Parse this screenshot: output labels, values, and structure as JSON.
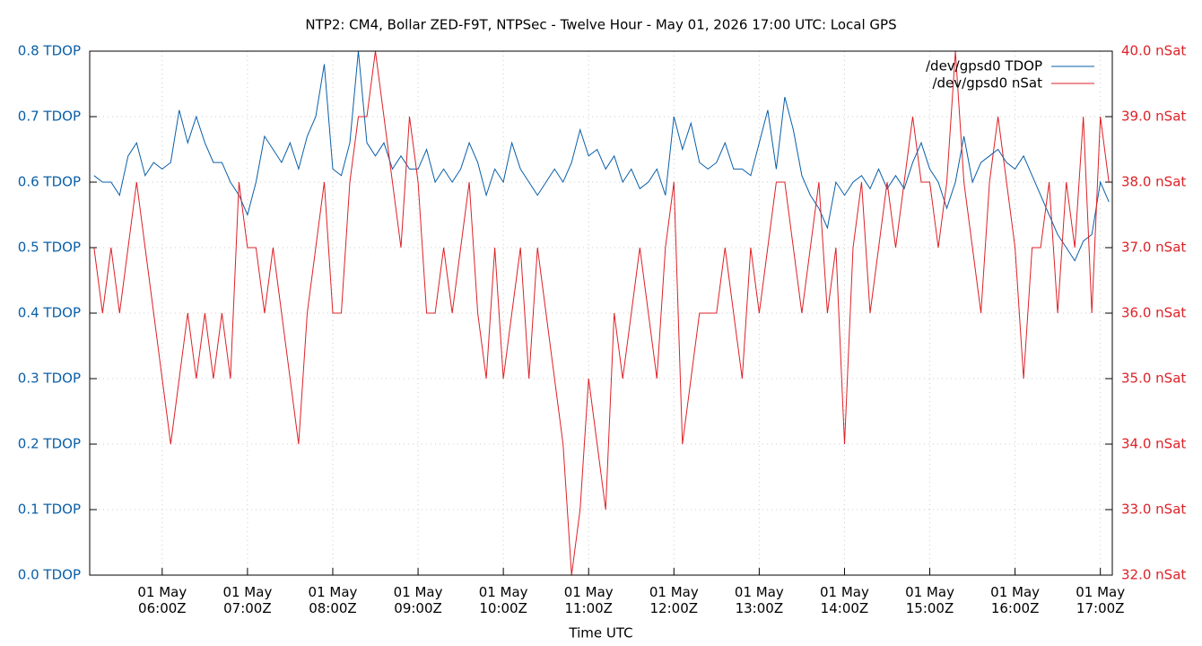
{
  "chart_data": {
    "type": "line",
    "title": "NTP2: CM4, Bollar ZED-F9T, NTPSec - Twelve Hour - May 01, 2026 17:00 UTC: Local GPS",
    "xlabel": "Time UTC",
    "x": [
      5.2,
      5.3,
      5.4,
      5.5,
      5.6,
      5.7,
      5.8,
      5.9,
      6.0,
      6.1,
      6.2,
      6.3,
      6.4,
      6.5,
      6.6,
      6.7,
      6.8,
      6.9,
      7.0,
      7.1,
      7.2,
      7.3,
      7.4,
      7.5,
      7.6,
      7.7,
      7.8,
      7.9,
      8.0,
      8.1,
      8.2,
      8.3,
      8.4,
      8.5,
      8.6,
      8.7,
      8.8,
      8.9,
      9.0,
      9.1,
      9.2,
      9.3,
      9.4,
      9.5,
      9.6,
      9.7,
      9.8,
      9.9,
      10.0,
      10.1,
      10.2,
      10.3,
      10.4,
      10.5,
      10.6,
      10.7,
      10.8,
      10.9,
      11.0,
      11.1,
      11.2,
      11.3,
      11.4,
      11.5,
      11.6,
      11.7,
      11.8,
      11.9,
      12.0,
      12.1,
      12.2,
      12.3,
      12.4,
      12.5,
      12.6,
      12.7,
      12.8,
      12.9,
      13.0,
      13.1,
      13.2,
      13.3,
      13.4,
      13.5,
      13.6,
      13.7,
      13.8,
      13.9,
      14.0,
      14.1,
      14.2,
      14.3,
      14.4,
      14.5,
      14.6,
      14.7,
      14.8,
      14.9,
      15.0,
      15.1,
      15.2,
      15.3,
      15.4,
      15.5,
      15.6,
      15.7,
      15.8,
      15.9,
      16.0,
      16.1,
      16.2,
      16.3,
      16.4,
      16.5,
      16.6,
      16.7,
      16.8,
      16.9,
      17.0,
      17.1
    ],
    "series": [
      {
        "name": "/dev/gpsd0 TDOP",
        "color": "#0a5fa8",
        "axis": "y",
        "values": [
          0.61,
          0.6,
          0.6,
          0.58,
          0.64,
          0.66,
          0.61,
          0.63,
          0.62,
          0.63,
          0.71,
          0.66,
          0.7,
          0.66,
          0.63,
          0.63,
          0.6,
          0.58,
          0.55,
          0.6,
          0.67,
          0.65,
          0.63,
          0.66,
          0.62,
          0.67,
          0.7,
          0.78,
          0.62,
          0.61,
          0.66,
          0.8,
          0.66,
          0.64,
          0.66,
          0.62,
          0.64,
          0.62,
          0.62,
          0.65,
          0.6,
          0.62,
          0.6,
          0.62,
          0.66,
          0.63,
          0.58,
          0.62,
          0.6,
          0.66,
          0.62,
          0.6,
          0.58,
          0.6,
          0.62,
          0.6,
          0.63,
          0.68,
          0.64,
          0.65,
          0.62,
          0.64,
          0.6,
          0.62,
          0.59,
          0.6,
          0.62,
          0.58,
          0.7,
          0.65,
          0.69,
          0.63,
          0.62,
          0.63,
          0.66,
          0.62,
          0.62,
          0.61,
          0.66,
          0.71,
          0.62,
          0.73,
          0.68,
          0.61,
          0.58,
          0.56,
          0.53,
          0.6,
          0.58,
          0.6,
          0.61,
          0.59,
          0.62,
          0.59,
          0.61,
          0.59,
          0.63,
          0.66,
          0.62,
          0.6,
          0.56,
          0.6,
          0.67,
          0.6,
          0.63,
          0.64,
          0.65,
          0.63,
          0.62,
          0.64,
          0.61,
          0.58,
          0.55,
          0.52,
          0.5,
          0.48,
          0.51,
          0.52,
          0.6,
          0.57
        ]
      },
      {
        "name": "/dev/gpsd0 nSat",
        "color": "#dd2127",
        "axis": "y2",
        "values": [
          37,
          36,
          37,
          36,
          37,
          38,
          37,
          36,
          35,
          34,
          35,
          36,
          35,
          36,
          35,
          36,
          35,
          38,
          37,
          37,
          36,
          37,
          36,
          35,
          34,
          36,
          37,
          38,
          36,
          36,
          38,
          39,
          39,
          40,
          39,
          38,
          37,
          39,
          38,
          36,
          36,
          37,
          36,
          37,
          38,
          36,
          35,
          37,
          35,
          36,
          37,
          35,
          37,
          36,
          35,
          34,
          32,
          33,
          35,
          34,
          33,
          36,
          35,
          36,
          37,
          36,
          35,
          37,
          38,
          34,
          35,
          36,
          36,
          36,
          37,
          36,
          35,
          37,
          36,
          37,
          38,
          38,
          37,
          36,
          37,
          38,
          36,
          37,
          34,
          37,
          38,
          36,
          37,
          38,
          37,
          38,
          39,
          38,
          38,
          37,
          38,
          40,
          38,
          37,
          36,
          38,
          39,
          38,
          37,
          35,
          37,
          37,
          38,
          36,
          38,
          37,
          39,
          36,
          39,
          38
        ]
      }
    ],
    "xlim": [
      5.15,
      17.14
    ],
    "xticks": [
      {
        "value": 6,
        "label": "01 May\n06:00Z"
      },
      {
        "value": 7,
        "label": "01 May\n07:00Z"
      },
      {
        "value": 8,
        "label": "01 May\n08:00Z"
      },
      {
        "value": 9,
        "label": "01 May\n09:00Z"
      },
      {
        "value": 10,
        "label": "01 May\n10:00Z"
      },
      {
        "value": 11,
        "label": "01 May\n11:00Z"
      },
      {
        "value": 12,
        "label": "01 May\n12:00Z"
      },
      {
        "value": 13,
        "label": "01 May\n13:00Z"
      },
      {
        "value": 14,
        "label": "01 May\n14:00Z"
      },
      {
        "value": 15,
        "label": "01 May\n15:00Z"
      },
      {
        "value": 16,
        "label": "01 May\n16:00Z"
      },
      {
        "value": 17,
        "label": "01 May\n17:00Z"
      }
    ],
    "ylim": [
      0,
      0.8
    ],
    "yticks": [
      {
        "value": 0,
        "label": "0.0 TDOP"
      },
      {
        "value": 0.1,
        "label": "0.1 TDOP"
      },
      {
        "value": 0.2,
        "label": "0.2 TDOP"
      },
      {
        "value": 0.3,
        "label": "0.3 TDOP"
      },
      {
        "value": 0.4,
        "label": "0.4 TDOP"
      },
      {
        "value": 0.5,
        "label": "0.5 TDOP"
      },
      {
        "value": 0.6,
        "label": "0.6 TDOP"
      },
      {
        "value": 0.7,
        "label": "0.7 TDOP"
      },
      {
        "value": 0.8,
        "label": "0.8 TDOP"
      }
    ],
    "y2lim": [
      32,
      40
    ],
    "y2ticks": [
      {
        "value": 32,
        "label": "32.0 nSat"
      },
      {
        "value": 33,
        "label": "33.0 nSat"
      },
      {
        "value": 34,
        "label": "34.0 nSat"
      },
      {
        "value": 35,
        "label": "35.0 nSat"
      },
      {
        "value": 36,
        "label": "36.0 nSat"
      },
      {
        "value": 37,
        "label": "37.0 nSat"
      },
      {
        "value": 38,
        "label": "38.0 nSat"
      },
      {
        "value": 39,
        "label": "39.0 nSat"
      },
      {
        "value": 40,
        "label": "40.0 nSat"
      }
    ],
    "grid": true,
    "legend": "top-right"
  }
}
